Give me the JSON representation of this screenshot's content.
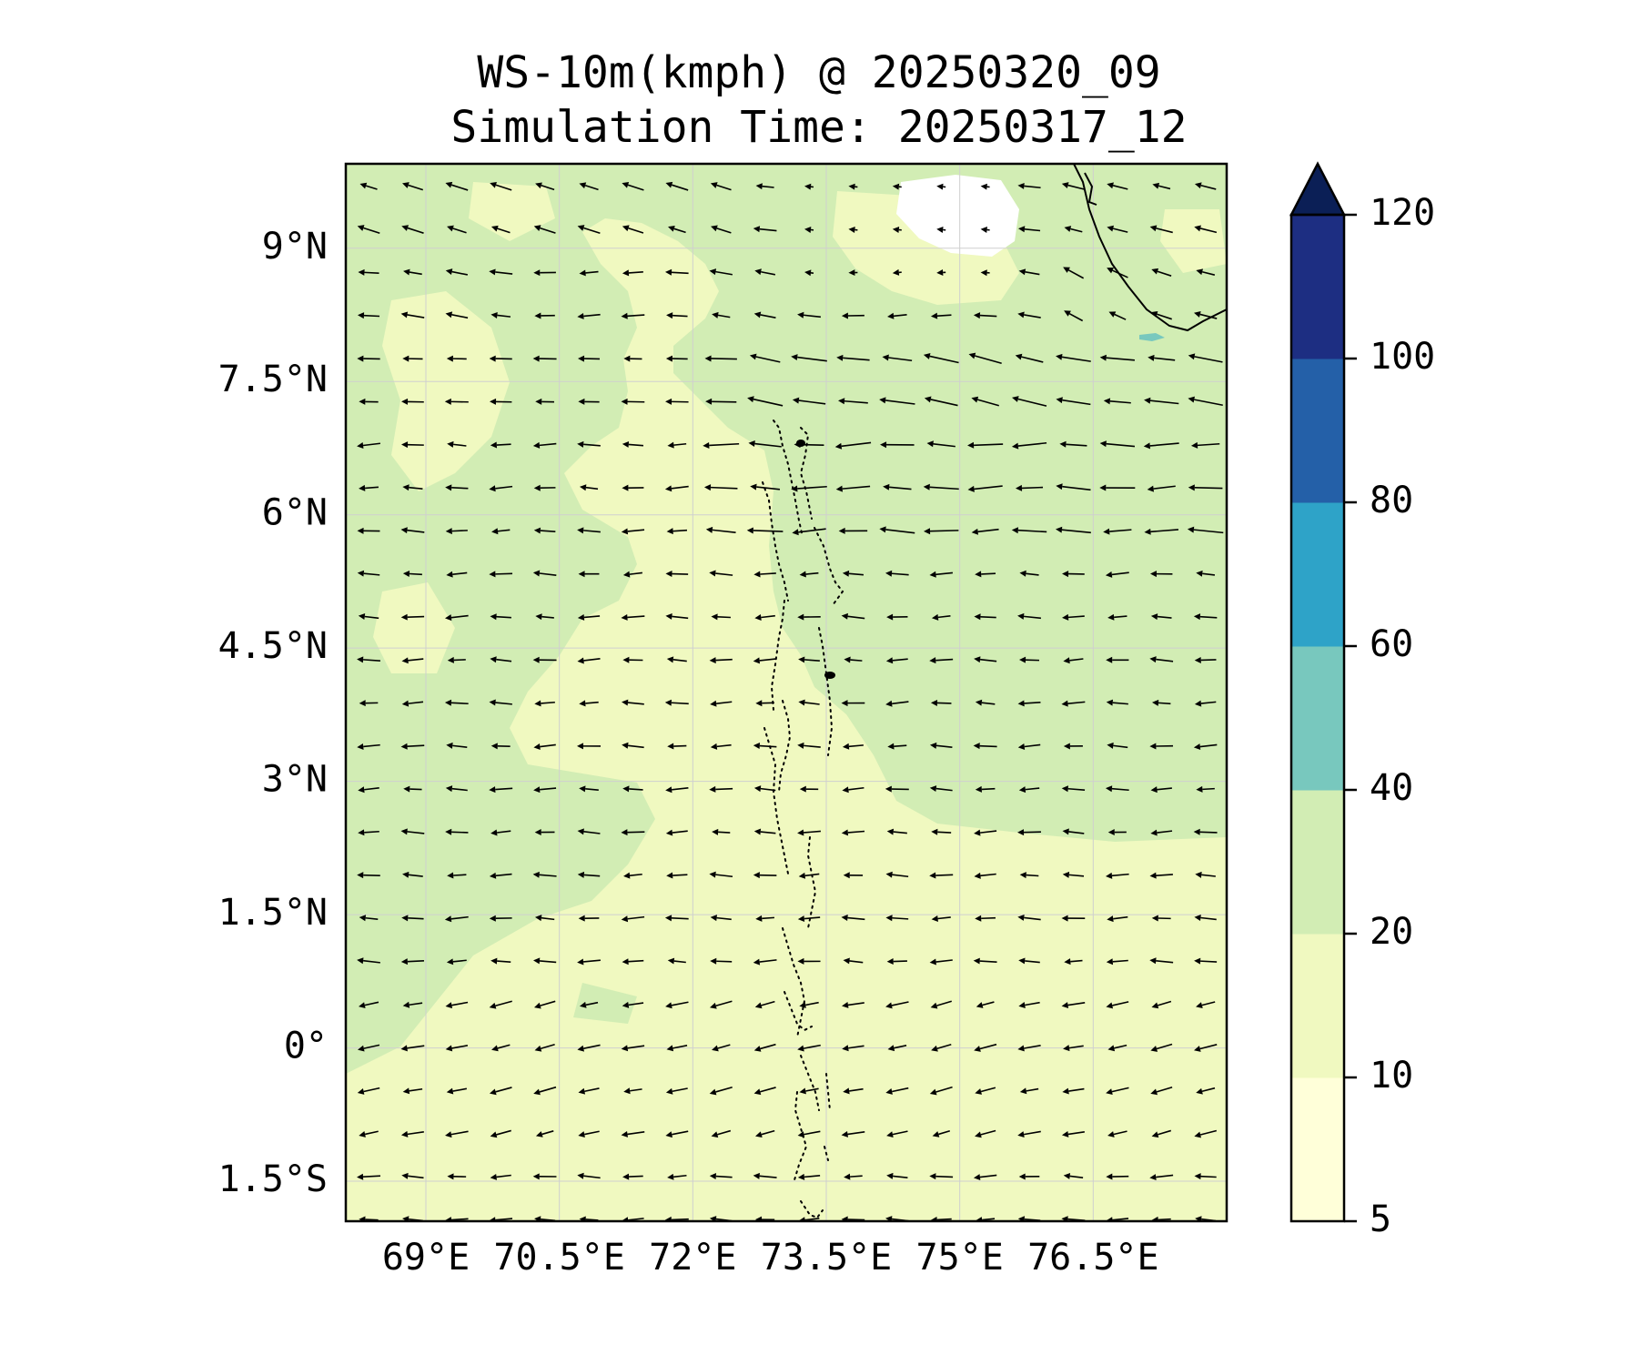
{
  "title": {
    "line1": "WS-10m(kmph) @ 20250320_09",
    "line2": "Simulation Time: 20250317_12"
  },
  "map": {
    "variable": "10m wind speed with wind direction vectors",
    "lon_range": [
      68.1,
      78.0
    ],
    "lat_range": [
      -1.95,
      9.95
    ],
    "lon_ticks": [
      {
        "value": 69.0,
        "label": "69°E"
      },
      {
        "value": 70.5,
        "label": "70.5°E"
      },
      {
        "value": 72.0,
        "label": "72°E"
      },
      {
        "value": 73.5,
        "label": "73.5°E"
      },
      {
        "value": 75.0,
        "label": "75°E"
      },
      {
        "value": 76.5,
        "label": "76.5°E"
      }
    ],
    "lat_ticks": [
      {
        "value": 9.0,
        "label": "9°N"
      },
      {
        "value": 7.5,
        "label": "7.5°N"
      },
      {
        "value": 6.0,
        "label": "6°N"
      },
      {
        "value": 4.5,
        "label": "4.5°N"
      },
      {
        "value": 3.0,
        "label": "3°N"
      },
      {
        "value": 1.5,
        "label": "1.5°N"
      },
      {
        "value": 0.0,
        "label": "0°"
      },
      {
        "value": -1.5,
        "label": "1.5°S"
      }
    ],
    "grid": true
  },
  "colorbar": {
    "extend": "max",
    "levels": [
      {
        "label": "5",
        "color": "#ffffd9"
      },
      {
        "label": "10",
        "color": "#f0f9c0"
      },
      {
        "label": "20",
        "color": "#d2edb4"
      },
      {
        "label": "40",
        "color": "#78c8be"
      },
      {
        "label": "60",
        "color": "#2ea3c8"
      },
      {
        "label": "80",
        "color": "#2460a8"
      },
      {
        "label": "100",
        "color": "#1d2e82"
      },
      {
        "label": "120",
        "color": "#0b1f56"
      }
    ]
  },
  "colors": {
    "light": "#f0f9c0",
    "green": "#d2edb4",
    "white": "#ffffff",
    "teal": "#78c8be",
    "arrow": "#000000",
    "coast": "#000000"
  }
}
